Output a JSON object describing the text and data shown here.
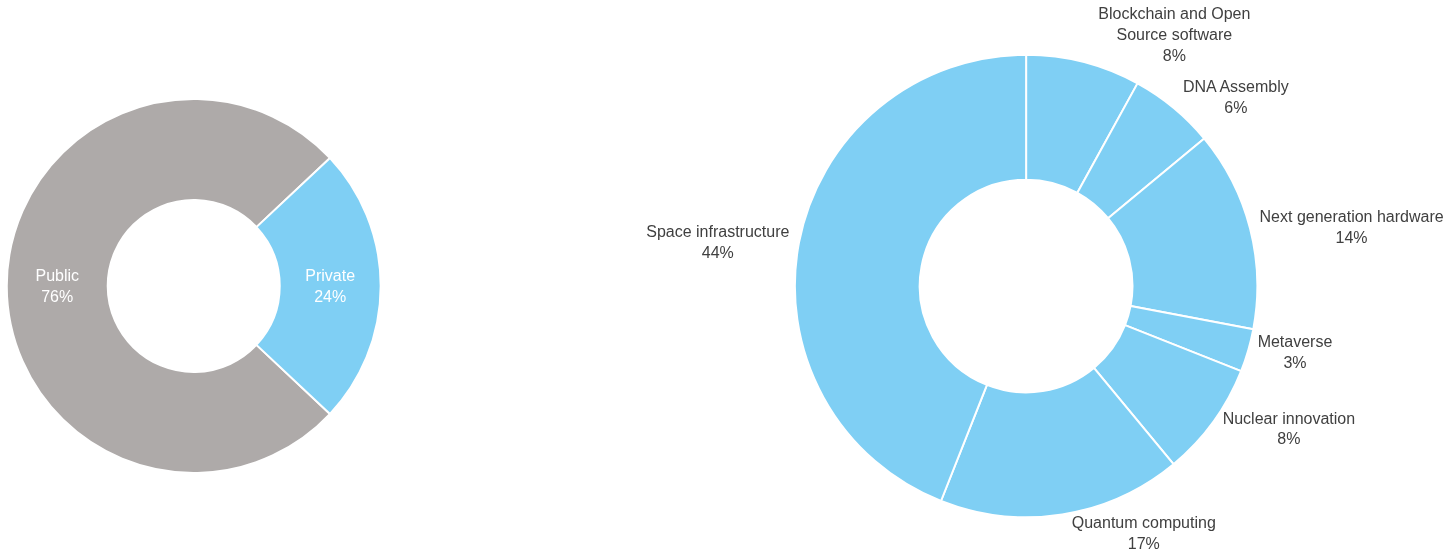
{
  "chart_data": [
    {
      "type": "donut",
      "categories": [
        "Public",
        "Private"
      ],
      "values": [
        76,
        24
      ],
      "colors": [
        "#aeaaa9",
        "#7fcff4"
      ],
      "value_labels": [
        "76%",
        "24%"
      ]
    },
    {
      "type": "donut",
      "categories": [
        "Blockchain and Open Source software",
        "DNA Assembly",
        "Next generation hardware",
        "Metaverse",
        "Nuclear innovation",
        "Quantum computing",
        "Space infrastructure"
      ],
      "values": [
        8,
        6,
        14,
        3,
        8,
        17,
        44
      ],
      "colors": [
        "#7fcff4",
        "#7fcff4",
        "#7fcff4",
        "#7fcff4",
        "#7fcff4",
        "#7fcff4",
        "#7fcff4"
      ],
      "value_labels": [
        "8%",
        "6%",
        "14%",
        "3%",
        "8%",
        "17%",
        "44%"
      ]
    }
  ]
}
